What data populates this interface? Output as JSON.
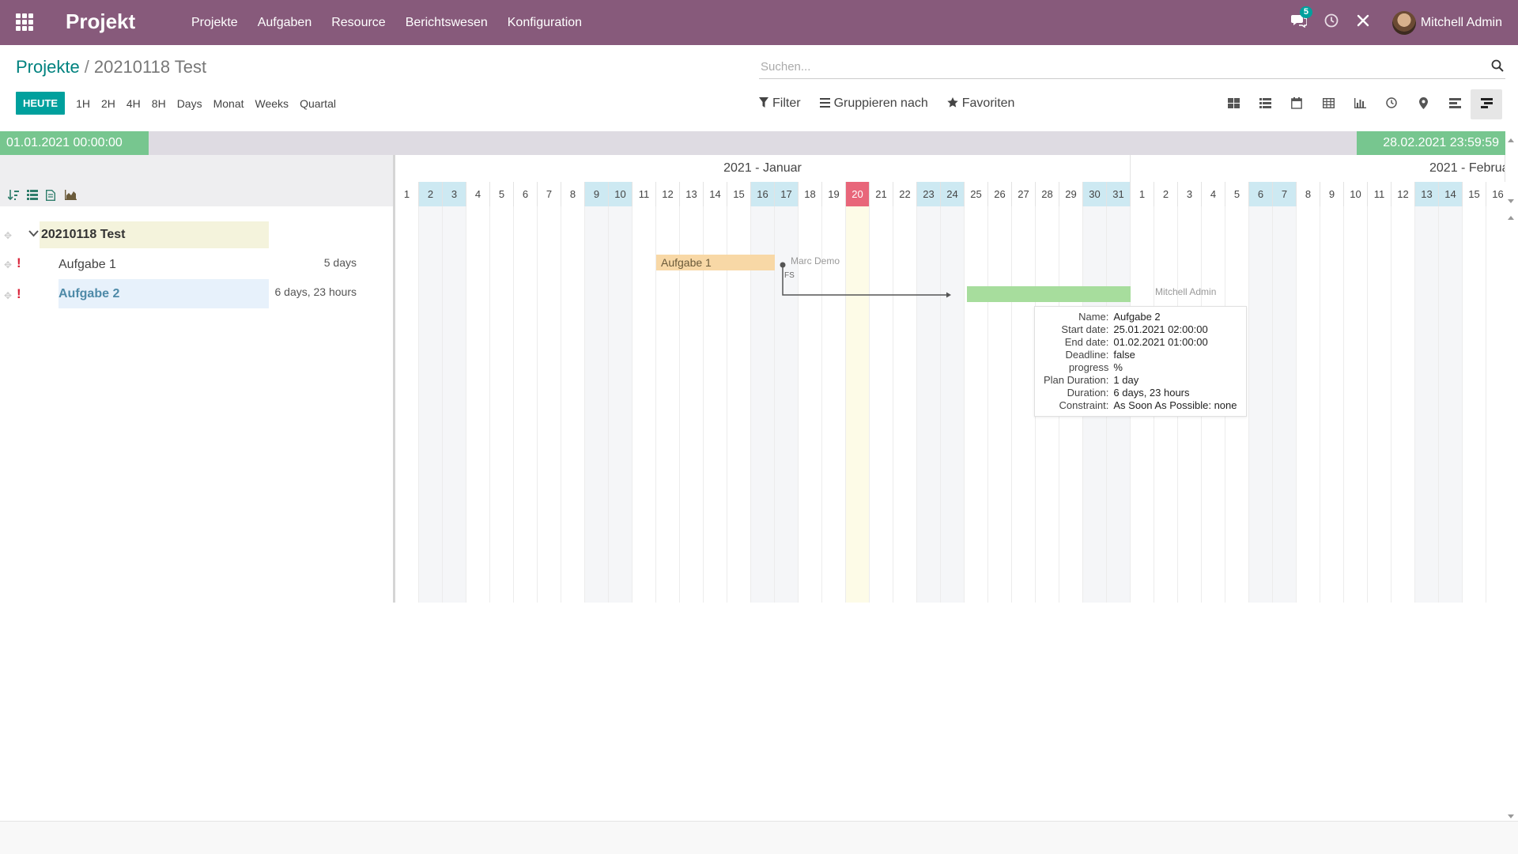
{
  "app": {
    "name": "Projekt",
    "menu": [
      "Projekte",
      "Aufgaben",
      "Resource",
      "Berichtswesen",
      "Konfiguration"
    ],
    "messages_count": "5",
    "user_name": "Mitchell Admin"
  },
  "breadcrumb": {
    "parent": "Projekte",
    "separator": "/",
    "current": "20210118 Test"
  },
  "search": {
    "placeholder": "Suchen..."
  },
  "scale": {
    "today": "HEUTE",
    "options": [
      "1H",
      "2H",
      "4H",
      "8H",
      "Days",
      "Monat",
      "Weeks",
      "Quartal"
    ]
  },
  "filters": {
    "filter": "Filter",
    "group_by": "Gruppieren nach",
    "favorites": "Favoriten"
  },
  "views": [
    "kanban",
    "list",
    "calendar",
    "pivot",
    "graph",
    "activity",
    "map",
    "timeline",
    "gantt"
  ],
  "gantt": {
    "start_date": "01.01.2021 00:00:00",
    "end_date": "28.02.2021 23:59:59",
    "months": [
      "2021 - Januar",
      "2021 - Februa"
    ],
    "january_days": 31,
    "february_days_visible": 16,
    "today_day": 20,
    "weekend_days_jan": [
      2,
      3,
      9,
      10,
      16,
      17,
      23,
      24,
      30,
      31
    ],
    "weekend_days_feb": [
      6,
      7,
      13,
      14
    ],
    "project": {
      "name": "20210118 Test"
    },
    "tasks": [
      {
        "name": "Aufgabe 1",
        "duration": "5 days",
        "bar_label": "Aufgabe 1",
        "assignee": "Marc Demo",
        "start_day": 12,
        "end_day": 17,
        "color": "#f8d8a6"
      },
      {
        "name": "Aufgabe 2",
        "duration": "6 days, 23 hours",
        "bar_label": "",
        "assignee": "Mitchell Admin",
        "start_day": 25.1,
        "end_day": 32,
        "color": "#a7dd9d"
      }
    ],
    "dependency": {
      "type": "FS"
    },
    "tooltip": [
      {
        "key": "Name:",
        "value": "Aufgabe 2"
      },
      {
        "key": "Start date:",
        "value": "25.01.2021 02:00:00"
      },
      {
        "key": "End date:",
        "value": "01.02.2021 01:00:00"
      },
      {
        "key": "Deadline:",
        "value": "false"
      },
      {
        "key": "progress",
        "value": "%"
      },
      {
        "key": "Plan Duration:",
        "value": "1 day"
      },
      {
        "key": "Duration:",
        "value": "6 days, 23 hours"
      },
      {
        "key": "Constraint:",
        "value": "As Soon As Possible: none"
      }
    ]
  },
  "colors": {
    "navbar": "#875a7b",
    "accent": "#00a09d",
    "link": "#00827f",
    "date_chip": "#77c68f",
    "today": "#e8667a",
    "weekend": "#cde9f2"
  }
}
